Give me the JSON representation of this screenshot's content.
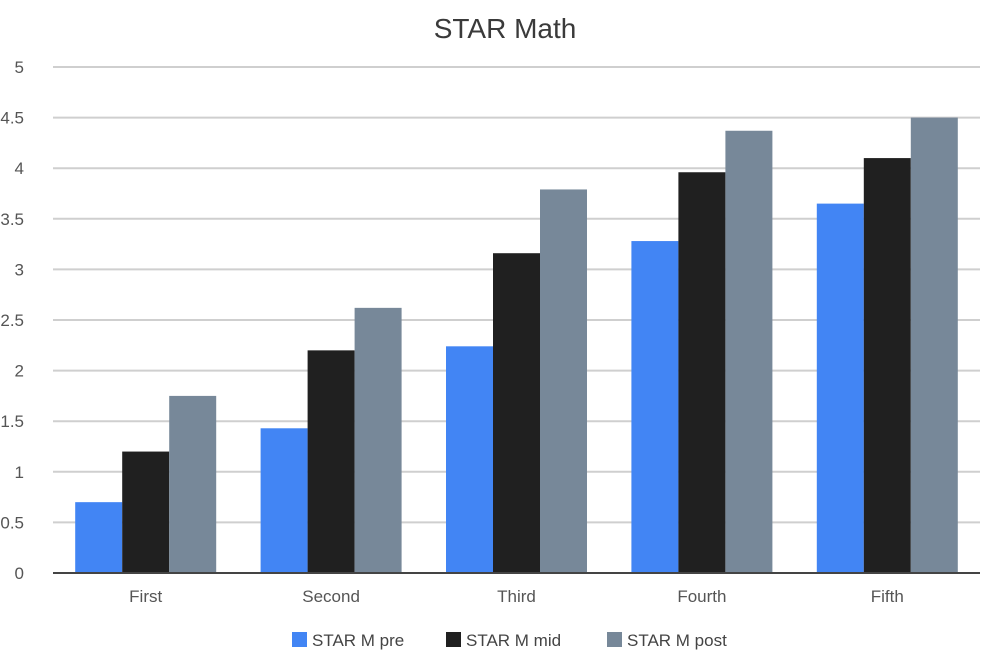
{
  "chart_data": {
    "type": "bar",
    "title": "STAR Math",
    "categories": [
      "First",
      "Second",
      "Third",
      "Fourth",
      "Fifth"
    ],
    "series": [
      {
        "name": "STAR M pre",
        "color": "#4285f4",
        "values": [
          0.7,
          1.43,
          2.24,
          3.28,
          3.65
        ]
      },
      {
        "name": "STAR M mid",
        "color": "#202020",
        "values": [
          1.2,
          2.2,
          3.16,
          3.96,
          4.1
        ]
      },
      {
        "name": "STAR M post",
        "color": "#778899",
        "values": [
          1.75,
          2.62,
          3.79,
          4.37,
          4.5
        ]
      }
    ],
    "ylim": [
      0,
      5
    ],
    "yticks": [
      "0",
      "0.5",
      "1",
      "1.5",
      "2",
      "2.5",
      "3",
      "3.5",
      "4",
      "4.5",
      "5"
    ],
    "grid": true,
    "legend_position": "bottom"
  }
}
